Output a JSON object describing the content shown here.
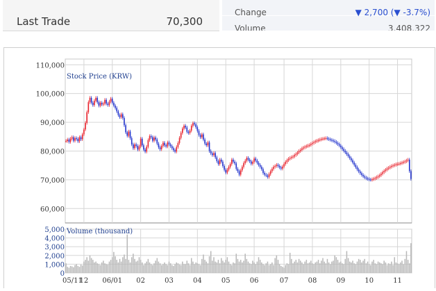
{
  "quote": {
    "last_trade_label": "Last Trade",
    "last_trade_value": "70,300",
    "change_label": "Change",
    "change_value": "▼ 2,700  (▼ -3.7%)",
    "volume_label": "Volume",
    "volume_value": "3,408,322"
  },
  "colors": {
    "up": "#e8202a",
    "down": "#2233cc",
    "volume": "#b8b8b8",
    "grid": "#d6d6d6",
    "label": "#1f3f8f",
    "down_text": "#2a4fd0"
  },
  "chart_data": [
    {
      "type": "line",
      "title": "Stock Price (KRW)",
      "ylim": [
        55000,
        112000
      ],
      "y_ticks": [
        "110,000",
        "100,000",
        "90,000",
        "80,000",
        "70,000",
        "60,000"
      ],
      "y_tick_values": [
        110000,
        100000,
        90000,
        80000,
        70000,
        60000
      ],
      "x_ticks": [
        "05/11",
        "12",
        "06/01",
        "02",
        "03",
        "04",
        "05",
        "06",
        "07",
        "08",
        "09",
        "10",
        "11"
      ],
      "x_tick_index": [
        0,
        12,
        31,
        50,
        69,
        88,
        107,
        126,
        146,
        165,
        184,
        203,
        222
      ],
      "grid": true,
      "series": [
        {
          "values": [
            83500,
            84000,
            83200,
            84300,
            84800,
            83600,
            84500,
            84200,
            83400,
            84800,
            84100,
            85800,
            87500,
            89800,
            93500,
            97000,
            98500,
            96800,
            96000,
            97500,
            98500,
            97000,
            95800,
            96800,
            96200,
            96500,
            97800,
            96500,
            96000,
            97200,
            98200,
            96800,
            95800,
            95000,
            93800,
            92500,
            91800,
            92800,
            91500,
            89000,
            86500,
            85300,
            86800,
            84500,
            82300,
            81000,
            82300,
            81800,
            80500,
            81600,
            84300,
            82000,
            80500,
            79800,
            81500,
            83800,
            85200,
            84800,
            83600,
            84700,
            84000,
            82600,
            81300,
            80600,
            81800,
            82900,
            82000,
            81600,
            83000,
            82300,
            81700,
            81000,
            80300,
            79800,
            81400,
            82800,
            84600,
            86300,
            87800,
            88800,
            88200,
            86700,
            86300,
            87100,
            88800,
            89700,
            89300,
            88300,
            87000,
            85600,
            84800,
            85800,
            84000,
            82600,
            82000,
            83000,
            80000,
            79200,
            78600,
            79300,
            77800,
            76500,
            75500,
            77000,
            76300,
            74800,
            73500,
            72500,
            73500,
            74500,
            75500,
            77000,
            76300,
            75700,
            73800,
            73000,
            71800,
            73300,
            74500,
            75800,
            76600,
            77600,
            77000,
            76400,
            75600,
            76200,
            77400,
            76700,
            75900,
            75200,
            74500,
            73700,
            72400,
            71800,
            71500,
            71000,
            72000,
            73000,
            73800,
            74500,
            74800,
            75200,
            74800,
            74300,
            73900,
            74600,
            75500,
            76200,
            76800,
            77300,
            77600,
            77900,
            78100,
            78600,
            79000,
            79500,
            80000,
            80400,
            80900,
            81200,
            81500,
            81700,
            81900,
            82100,
            82500,
            82800,
            83100,
            83400,
            83600,
            83800,
            84000,
            84200,
            84300,
            84400,
            84500,
            84300,
            84100,
            83900,
            83700,
            83500,
            83200,
            82800,
            82400,
            81900,
            81300,
            80700,
            80100,
            79500,
            78900,
            78200,
            77500,
            76800,
            76000,
            75200,
            74400,
            73600,
            72900,
            72300,
            71700,
            71200,
            70800,
            70500,
            70300,
            70100,
            70000,
            70200,
            70400,
            70600,
            70900,
            71200,
            71600,
            72100,
            72600,
            73100,
            73500,
            73900,
            74200,
            74500,
            74800,
            75000,
            75200,
            75400,
            75500,
            75600,
            75800,
            76000,
            76200,
            76400,
            76700,
            77000,
            73000,
            70300
          ]
        }
      ]
    },
    {
      "type": "bar",
      "title": "Volume (thousand)",
      "ylim": [
        0,
        5000
      ],
      "y_ticks": [
        "5,000",
        "4,000",
        "3,000",
        "2,000",
        "1,000",
        "0"
      ],
      "y_tick_values": [
        5000,
        4000,
        3000,
        2000,
        1000,
        0
      ],
      "values": [
        1100,
        700,
        600,
        800,
        750,
        650,
        900,
        1000,
        800,
        700,
        950,
        850,
        1300,
        1500,
        1800,
        1400,
        2000,
        1700,
        1500,
        1200,
        1300,
        1100,
        1000,
        900,
        1200,
        1400,
        1100,
        1000,
        950,
        1300,
        1500,
        1800,
        2400,
        1900,
        1500,
        1200,
        1600,
        1300,
        1800,
        2100,
        1600,
        4400,
        1500,
        1200,
        1800,
        2200,
        1600,
        1300,
        1400,
        1800,
        1500,
        1200,
        900,
        1100,
        1300,
        1600,
        1200,
        1000,
        900,
        1100,
        1400,
        1700,
        1300,
        1100,
        900,
        1000,
        1200,
        1000,
        900,
        1300,
        1100,
        900,
        800,
        1000,
        1200,
        1100,
        950,
        900,
        1300,
        1000,
        1000,
        1400,
        1100,
        900,
        1700,
        1300,
        1000,
        1200,
        1100,
        1000,
        900,
        1600,
        2100,
        1500,
        1300,
        1100,
        1900,
        2500,
        1400,
        1800,
        1300,
        1200,
        1500,
        1100,
        1700,
        1400,
        1200,
        1500,
        1800,
        1300,
        1000,
        900,
        1200,
        1100,
        2200,
        1600,
        1300,
        1500,
        1200,
        1400,
        2200,
        1600,
        1300,
        1100,
        1000,
        1400,
        1200,
        1000,
        1300,
        1800,
        1500,
        1200,
        1000,
        900,
        1100,
        1300,
        900,
        1000,
        1200,
        900,
        1700,
        2000,
        1500,
        1000,
        800,
        700,
        600,
        900,
        1100,
        1000,
        2300,
        1600,
        1100,
        1300,
        1500,
        1200,
        1600,
        1400,
        1200,
        1000,
        1300,
        1500,
        1100,
        1200,
        1400,
        1100,
        1000,
        1200,
        1300,
        1500,
        1100,
        1400,
        1700,
        1300,
        1100,
        1600,
        1200,
        1000,
        1300,
        1400,
        2000,
        1800,
        1500,
        1200,
        1300,
        1100,
        1000,
        1600,
        2500,
        1700,
        1300,
        1200,
        1400,
        1100,
        1000,
        1300,
        1600,
        1500,
        1200,
        1400,
        1600,
        1100,
        1300,
        1000,
        900,
        1300,
        1500,
        1100,
        1000,
        1300,
        1200,
        1100,
        1000,
        1400,
        1200,
        900,
        1100,
        1000,
        1300,
        900,
        1800,
        1200,
        1100,
        1000,
        1200,
        1400,
        1000,
        1600,
        2500,
        1500,
        1100,
        3400
      ]
    }
  ]
}
